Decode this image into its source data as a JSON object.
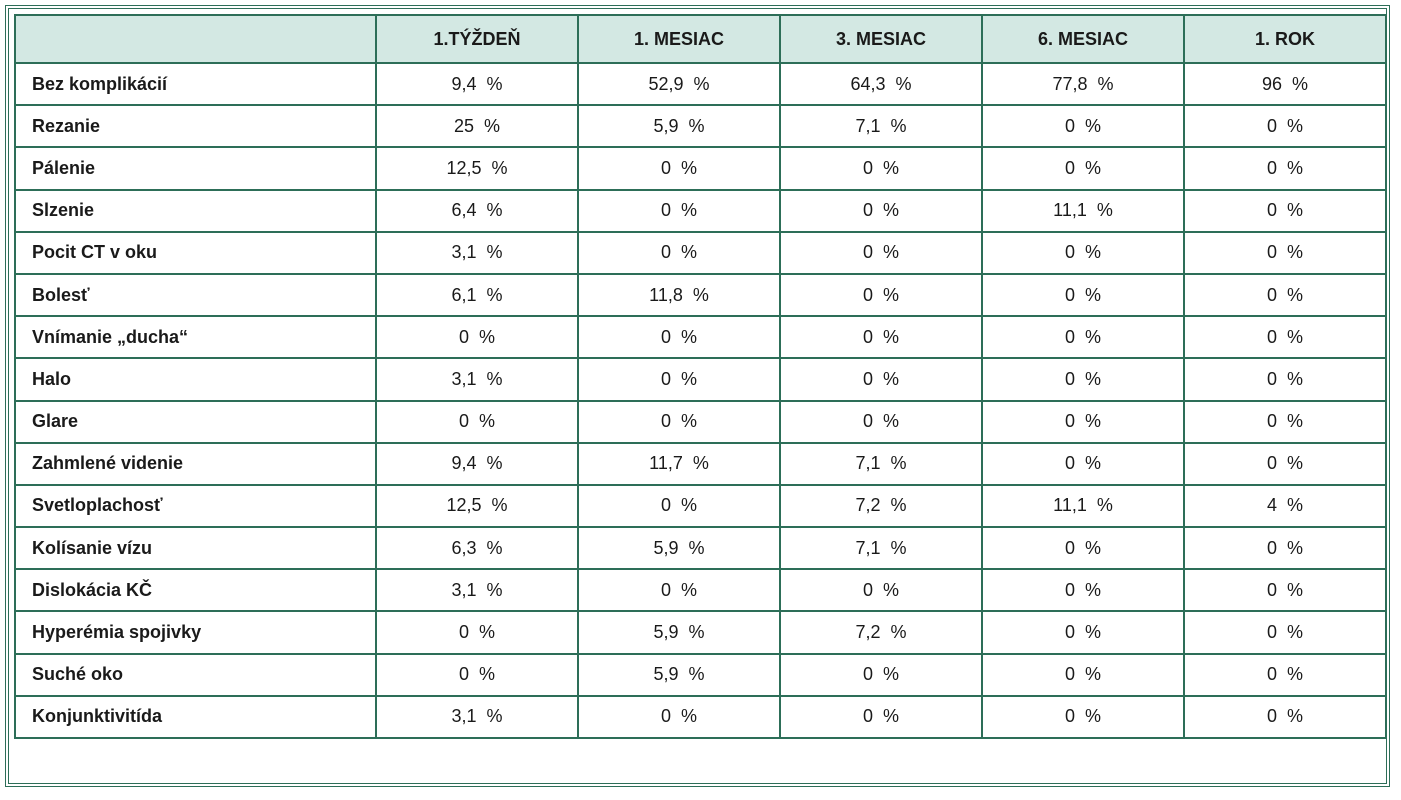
{
  "table": {
    "columns": [
      "",
      "1.TÝŽDEŇ",
      "1. MESIAC",
      "3. MESIAC",
      "6. MESIAC",
      "1. ROK"
    ],
    "rows": [
      {
        "label": "Bez komplikácií",
        "values": [
          "9,4  %",
          "52,9  %",
          "64,3  %",
          "77,8  %",
          "96  %"
        ]
      },
      {
        "label": "Rezanie",
        "values": [
          "25  %",
          "5,9  %",
          "7,1  %",
          "0  %",
          "0  %"
        ]
      },
      {
        "label": "Pálenie",
        "values": [
          "12,5  %",
          "0  %",
          "0  %",
          "0  %",
          "0  %"
        ]
      },
      {
        "label": "Slzenie",
        "values": [
          "6,4  %",
          "0  %",
          "0  %",
          "11,1  %",
          "0  %"
        ]
      },
      {
        "label": "Pocit CT v oku",
        "values": [
          "3,1  %",
          "0  %",
          "0  %",
          "0  %",
          "0  %"
        ]
      },
      {
        "label": "Bolesť",
        "values": [
          "6,1  %",
          "11,8  %",
          "0  %",
          "0  %",
          "0  %"
        ]
      },
      {
        "label": "Vnímanie „ducha“",
        "values": [
          "0  %",
          "0  %",
          "0  %",
          "0  %",
          "0  %"
        ]
      },
      {
        "label": "Halo",
        "values": [
          "3,1  %",
          "0  %",
          "0  %",
          "0  %",
          "0  %"
        ]
      },
      {
        "label": "Glare",
        "values": [
          "0  %",
          "0  %",
          "0  %",
          "0  %",
          "0  %"
        ]
      },
      {
        "label": "Zahmlené videnie",
        "values": [
          "9,4  %",
          "11,7  %",
          "7,1  %",
          "0  %",
          "0  %"
        ]
      },
      {
        "label": "Svetloplachosť",
        "values": [
          "12,5  %",
          "0  %",
          "7,2  %",
          "11,1  %",
          "4  %"
        ]
      },
      {
        "label": "Kolísanie vízu",
        "values": [
          "6,3  %",
          "5,9  %",
          "7,1  %",
          "0  %",
          "0  %"
        ]
      },
      {
        "label": "Dislokácia KČ",
        "values": [
          "3,1  %",
          "0  %",
          "0  %",
          "0  %",
          "0  %"
        ]
      },
      {
        "label": "Hyperémia spojivky",
        "values": [
          "0  %",
          "5,9  %",
          "7,2  %",
          "0  %",
          "0  %"
        ]
      },
      {
        "label": "Suché oko",
        "values": [
          "0  %",
          "5,9  %",
          "0  %",
          "0  %",
          "0  %"
        ]
      },
      {
        "label": "Konjunktivitída",
        "values": [
          "3,1  %",
          "0  %",
          "0  %",
          "0  %",
          "0  %"
        ]
      }
    ]
  },
  "colors": {
    "border": "#2d6e58",
    "header_bg": "#d3e8e3"
  }
}
